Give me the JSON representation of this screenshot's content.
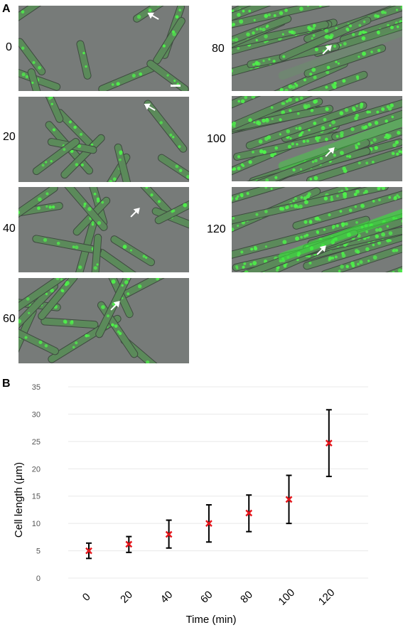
{
  "panel_a": {
    "label": "A",
    "left_column": [
      {
        "time": "0"
      },
      {
        "time": "20"
      },
      {
        "time": "40"
      },
      {
        "time": "60"
      }
    ],
    "right_column": [
      {
        "time": "80"
      },
      {
        "time": "100"
      },
      {
        "time": "120"
      }
    ]
  },
  "panel_b": {
    "label": "B"
  },
  "chart_data": {
    "type": "scatter",
    "xlabel": "Time (min)",
    "ylabel": "Cell length (μm)",
    "ylim": [
      0,
      35
    ],
    "yticks": [
      0,
      5,
      10,
      15,
      20,
      25,
      30,
      35
    ],
    "categories": [
      "0",
      "20",
      "40",
      "60",
      "80",
      "100",
      "120"
    ],
    "values": [
      5.0,
      6.2,
      8.0,
      10.0,
      11.9,
      14.4,
      24.7
    ],
    "error_low": [
      3.6,
      4.7,
      5.5,
      6.6,
      8.5,
      10.0,
      18.6
    ],
    "error_high": [
      6.4,
      7.6,
      10.6,
      13.4,
      15.2,
      18.8,
      30.8
    ],
    "grid": true,
    "marker_color": "#e3161b",
    "errorbar_color": "#000000",
    "gridline_color": "#e8e8e8"
  }
}
